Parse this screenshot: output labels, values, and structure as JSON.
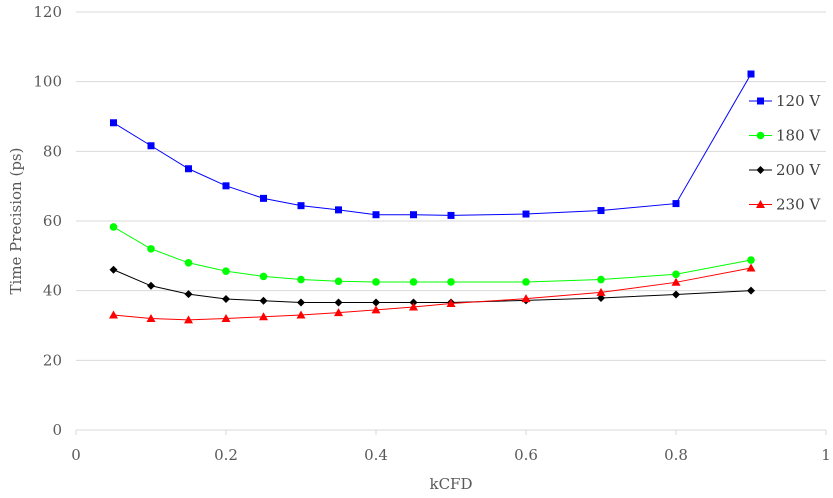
{
  "chart_data": {
    "type": "line",
    "title": "",
    "xlabel": "kCFD",
    "ylabel": "Time Precision (ps)",
    "xlim": [
      0,
      1
    ],
    "ylim": [
      0,
      120
    ],
    "xticks": [
      0,
      0.2,
      0.4,
      0.6,
      0.8,
      1
    ],
    "xtick_labels": [
      "0",
      "0.2",
      "0.4",
      "0.6",
      "0.8",
      "1"
    ],
    "yticks": [
      0,
      20,
      40,
      60,
      80,
      100,
      120
    ],
    "ytick_labels": [
      "0",
      "20",
      "40",
      "60",
      "80",
      "100",
      "120"
    ],
    "grid": "horizontal",
    "legend_position": "right",
    "series": [
      {
        "name": "120 V",
        "color": "#0000ff",
        "marker": "square",
        "x": [
          0.05,
          0.1,
          0.15,
          0.2,
          0.25,
          0.3,
          0.35,
          0.4,
          0.45,
          0.5,
          0.6,
          0.7,
          0.8,
          0.9
        ],
        "values": [
          88.2,
          81.6,
          75.0,
          70.1,
          66.5,
          64.4,
          63.2,
          61.8,
          61.8,
          61.6,
          62.0,
          63.0,
          65.0,
          102.2
        ]
      },
      {
        "name": "180 V",
        "color": "#00ff00",
        "marker": "circle",
        "x": [
          0.05,
          0.1,
          0.15,
          0.2,
          0.25,
          0.3,
          0.35,
          0.4,
          0.45,
          0.5,
          0.6,
          0.7,
          0.8,
          0.9
        ],
        "values": [
          58.3,
          52.0,
          48.0,
          45.6,
          44.1,
          43.2,
          42.7,
          42.5,
          42.5,
          42.5,
          42.5,
          43.2,
          44.7,
          48.8
        ]
      },
      {
        "name": "200 V",
        "color": "#000000",
        "marker": "diamond",
        "x": [
          0.05,
          0.1,
          0.15,
          0.2,
          0.25,
          0.3,
          0.35,
          0.4,
          0.45,
          0.5,
          0.6,
          0.7,
          0.8,
          0.9
        ],
        "values": [
          46.0,
          41.4,
          39.0,
          37.6,
          37.1,
          36.6,
          36.6,
          36.6,
          36.6,
          36.6,
          37.2,
          37.9,
          38.9,
          40.0
        ]
      },
      {
        "name": "230 V",
        "color": "#ff0000",
        "marker": "triangle",
        "x": [
          0.05,
          0.1,
          0.15,
          0.2,
          0.25,
          0.3,
          0.35,
          0.4,
          0.45,
          0.5,
          0.6,
          0.7,
          0.8,
          0.9
        ],
        "values": [
          33.0,
          32.0,
          31.6,
          32.0,
          32.5,
          33.0,
          33.7,
          34.5,
          35.3,
          36.3,
          37.7,
          39.5,
          42.4,
          46.5
        ]
      }
    ]
  }
}
